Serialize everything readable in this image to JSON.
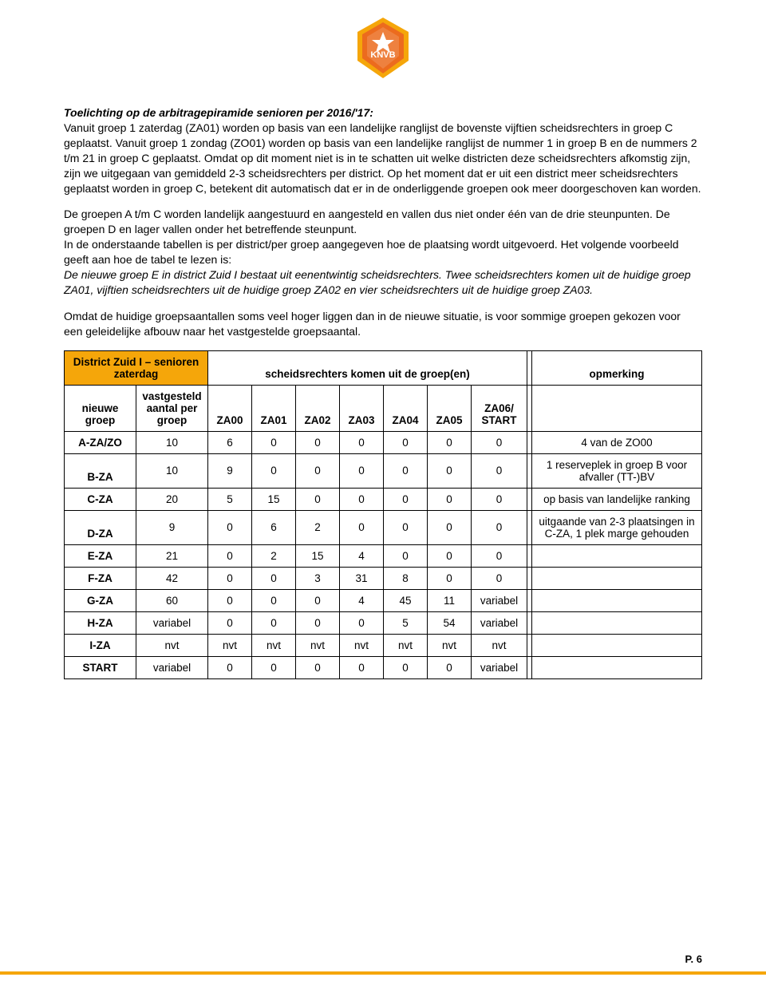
{
  "logo": {
    "text": "KNVB",
    "bg": "#ec6b1e",
    "border": "#f5a60a"
  },
  "heading": "Toelichting op de arbitragepiramide senioren per 2016/'17:",
  "para1": "Vanuit groep 1 zaterdag (ZA01) worden op basis van een landelijke ranglijst de bovenste vijftien scheidsrechters in groep C geplaatst. Vanuit groep 1 zondag (ZO01) worden op basis van een landelijke ranglijst de nummer 1 in groep B en de nummers 2 t/m 21 in groep C geplaatst. Omdat op dit moment niet is in te schatten uit welke districten deze scheidsrechters afkomstig zijn, zijn we uitgegaan van gemiddeld 2-3 scheidsrechters per district. Op het moment dat er uit een district meer scheidsrechters geplaatst worden in groep C, betekent dit automatisch dat er in de onderliggende groepen ook meer doorgeschoven kan worden.",
  "para2a": "De groepen A t/m C worden landelijk aangestuurd en aangesteld en vallen dus niet onder één van de drie steunpunten. De groepen D en lager vallen onder het betreffende steunpunt.",
  "para2b": "In de onderstaande tabellen is per district/per groep aangegeven hoe de plaatsing wordt uitgevoerd. Het volgende voorbeeld geeft aan hoe de tabel te lezen is:",
  "para2c_italic": "De nieuwe groep E in district Zuid I bestaat uit eenentwintig scheidsrechters. Twee scheidsrechters komen uit de huidige groep ZA01, vijftien scheidsrechters uit de huidige groep ZA02 en vier scheidsrechters uit de huidige groep ZA03.",
  "para3": "Omdat de huidige groepsaantallen soms veel hoger liggen dan in de nieuwe situatie, is voor sommige groepen gekozen voor een geleidelijke afbouw naar het vastgestelde groepsaantal.",
  "table": {
    "header_left": "District Zuid I – senioren zaterdag",
    "header_mid": "scheidsrechters komen uit de groep(en)",
    "header_right": "opmerking",
    "sub_col1": "nieuwe groep",
    "sub_col2": "vastgesteld aantal per groep",
    "cols": [
      "ZA00",
      "ZA01",
      "ZA02",
      "ZA03",
      "ZA04",
      "ZA05",
      "ZA06/ START"
    ],
    "rows": [
      {
        "g": "A-ZA/ZO",
        "n": "10",
        "v": [
          "6",
          "0",
          "0",
          "0",
          "0",
          "0",
          "0"
        ],
        "r": "4 van de ZO00"
      },
      {
        "g": "B-ZA",
        "n": "10",
        "v": [
          "9",
          "0",
          "0",
          "0",
          "0",
          "0",
          "0"
        ],
        "r": "1 reserveplek in groep B voor afvaller (TT-)BV"
      },
      {
        "g": "C-ZA",
        "n": "20",
        "v": [
          "5",
          "15",
          "0",
          "0",
          "0",
          "0",
          "0"
        ],
        "r": "op basis van landelijke ranking"
      },
      {
        "g": "D-ZA",
        "n": "9",
        "v": [
          "0",
          "6",
          "2",
          "0",
          "0",
          "0",
          "0"
        ],
        "r": "uitgaande van 2-3 plaatsingen in C-ZA, 1 plek marge gehouden"
      },
      {
        "g": "E-ZA",
        "n": "21",
        "v": [
          "0",
          "2",
          "15",
          "4",
          "0",
          "0",
          "0"
        ],
        "r": ""
      },
      {
        "g": "F-ZA",
        "n": "42",
        "v": [
          "0",
          "0",
          "3",
          "31",
          "8",
          "0",
          "0"
        ],
        "r": ""
      },
      {
        "g": "G-ZA",
        "n": "60",
        "v": [
          "0",
          "0",
          "0",
          "4",
          "45",
          "11",
          "variabel"
        ],
        "r": ""
      },
      {
        "g": "H-ZA",
        "n": "variabel",
        "v": [
          "0",
          "0",
          "0",
          "0",
          "5",
          "54",
          "variabel"
        ],
        "r": ""
      },
      {
        "g": "I-ZA",
        "n": "nvt",
        "v": [
          "nvt",
          "nvt",
          "nvt",
          "nvt",
          "nvt",
          "nvt",
          "nvt"
        ],
        "r": ""
      },
      {
        "g": "START",
        "n": "variabel",
        "v": [
          "0",
          "0",
          "0",
          "0",
          "0",
          "0",
          "variabel"
        ],
        "r": ""
      }
    ]
  },
  "footer": "P. 6",
  "colors": {
    "accent": "#f5a60a",
    "text": "#000000",
    "bg": "#ffffff"
  }
}
